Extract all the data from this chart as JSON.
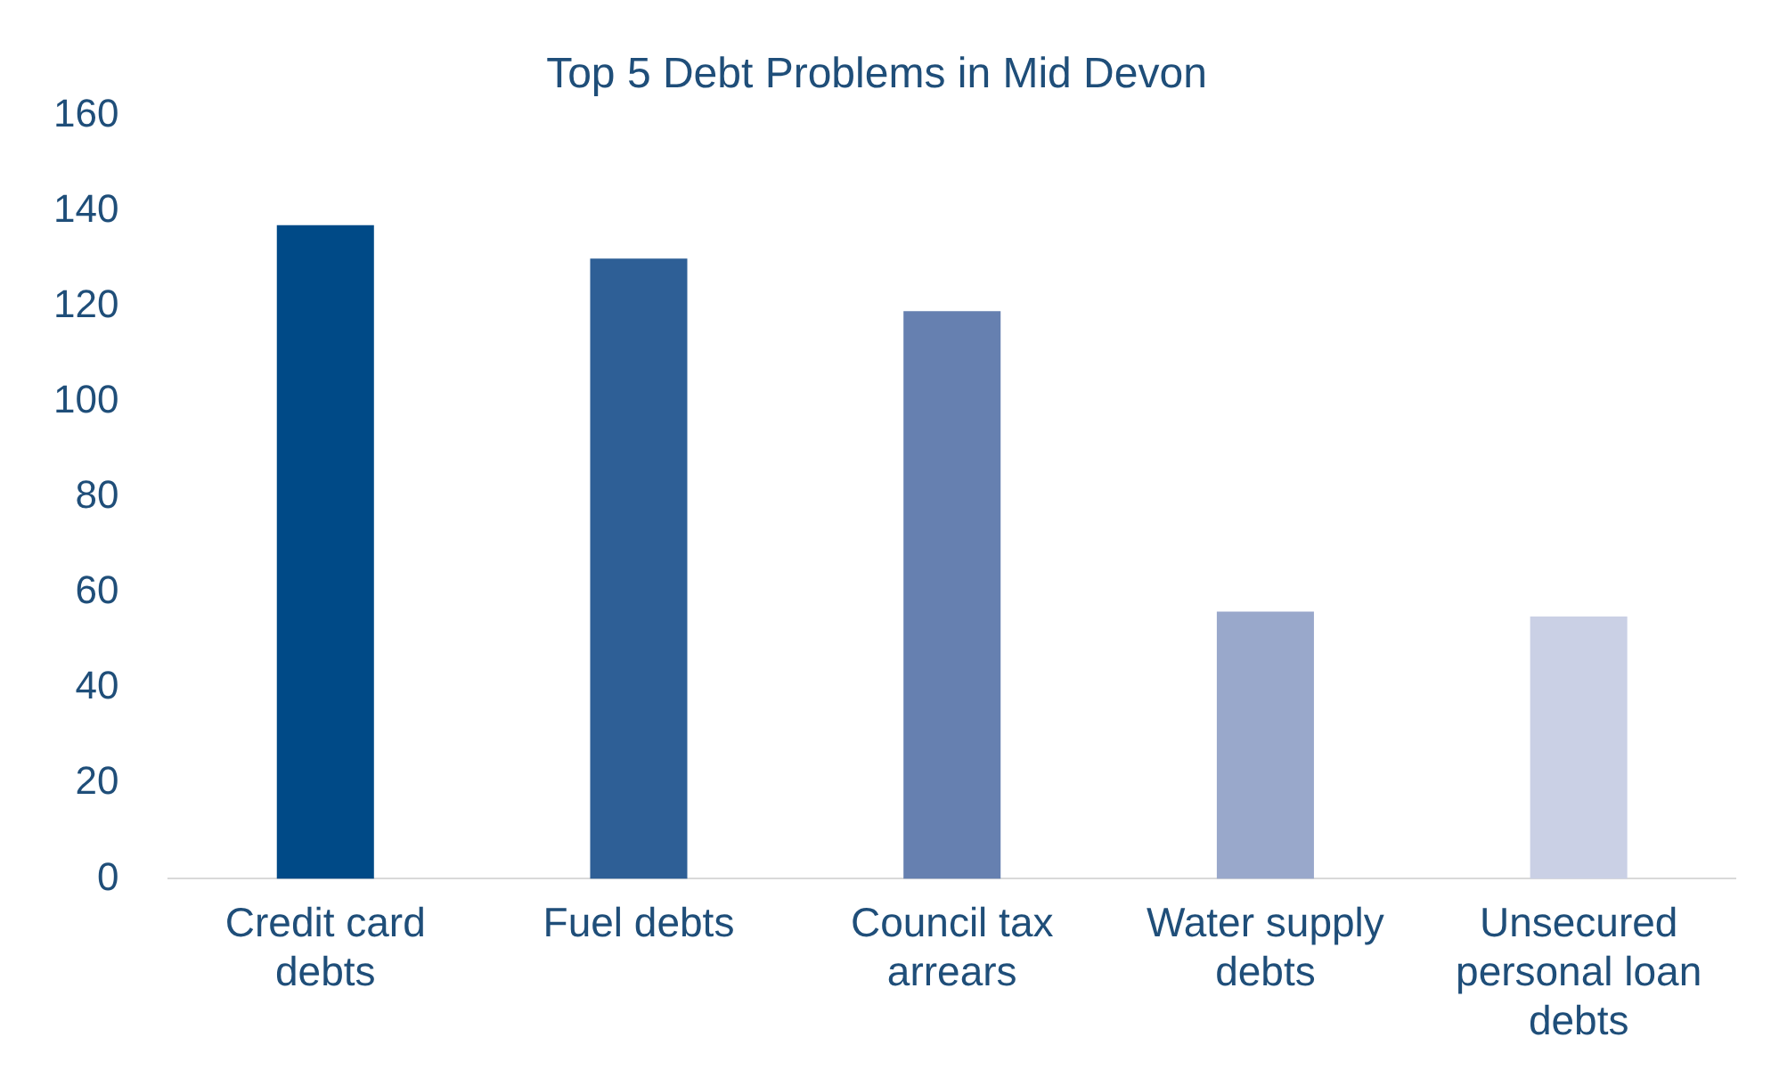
{
  "chart_data": {
    "type": "bar",
    "title": "Top 5 Debt Problems in Mid Devon",
    "categories": [
      "Credit card debts",
      "Fuel debts",
      "Council tax arrears",
      "Water supply debts",
      "Unsecured personal loan debts"
    ],
    "values": [
      137,
      130,
      119,
      56,
      55
    ],
    "colors": [
      "#004a87",
      "#2e5f96",
      "#6680b0",
      "#99a8cb",
      "#cad0e5"
    ],
    "ylim": [
      0,
      160
    ],
    "yticks": [
      0,
      20,
      40,
      60,
      80,
      100,
      120,
      140,
      160
    ],
    "grid": false,
    "legend": false
  }
}
